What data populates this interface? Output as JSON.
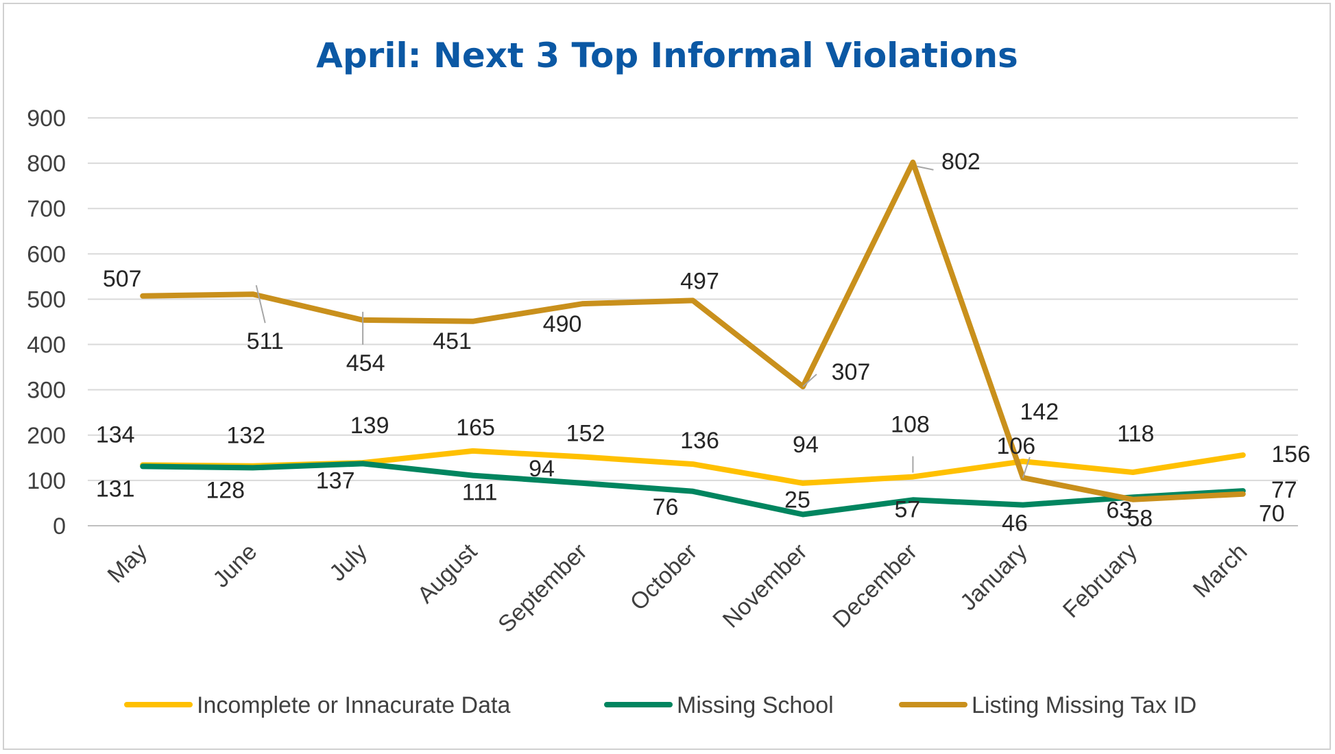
{
  "chart_data": {
    "type": "line",
    "title": "April: Next 3 Top Informal Violations",
    "categories": [
      "May",
      "June",
      "July",
      "August",
      "September",
      "October",
      "November",
      "December",
      "January",
      "February",
      "March"
    ],
    "ylim": [
      0,
      900
    ],
    "yticks": [
      0,
      100,
      200,
      300,
      400,
      500,
      600,
      700,
      800,
      900
    ],
    "grid": true,
    "legend_position": "bottom",
    "series": [
      {
        "name": "Incomplete or Innacurate Data",
        "color": "#FFC000",
        "values": [
          134,
          132,
          139,
          165,
          152,
          136,
          94,
          108,
          142,
          118,
          156
        ]
      },
      {
        "name": "Missing School",
        "color": "#00855F",
        "values": [
          131,
          128,
          137,
          111,
          94,
          76,
          25,
          57,
          46,
          63,
          77
        ]
      },
      {
        "name": "Listing Missing Tax ID",
        "color": "#C9901C",
        "values": [
          507,
          511,
          454,
          451,
          490,
          497,
          307,
          802,
          106,
          58,
          70
        ]
      }
    ]
  },
  "colors": {
    "title": "#0B58A4",
    "grid": "#d9d9d9",
    "axis": "#bfbfbf",
    "leader": "#a6a6a6"
  }
}
